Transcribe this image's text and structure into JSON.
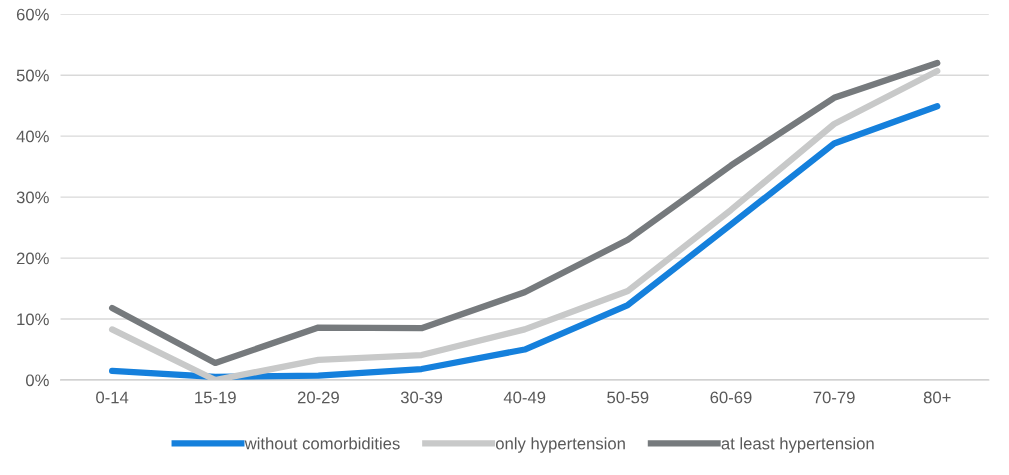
{
  "chart_data": {
    "type": "line",
    "categories": [
      "0-14",
      "15-19",
      "20-29",
      "30-39",
      "40-49",
      "50-59",
      "60-69",
      "70-79",
      "80+"
    ],
    "series": [
      {
        "name": "without comorbidities",
        "color": "#1580dc",
        "values": [
          1.5,
          0.5,
          0.7,
          1.8,
          5.0,
          12.3,
          25.5,
          38.8,
          44.9
        ]
      },
      {
        "name": "only hypertension",
        "color": "#c8c9c9",
        "values": [
          8.3,
          0.0,
          3.3,
          4.1,
          8.3,
          14.6,
          27.9,
          42.0,
          50.7
        ]
      },
      {
        "name": "at least hypertension",
        "color": "#767a7d",
        "values": [
          11.8,
          2.8,
          8.6,
          8.5,
          14.4,
          23.0,
          35.2,
          46.3,
          52.0
        ]
      }
    ],
    "ylim": [
      0,
      60
    ],
    "yticks": [
      {
        "value": 0,
        "label": "0%"
      },
      {
        "value": 10,
        "label": "10%"
      },
      {
        "value": 20,
        "label": "20%"
      },
      {
        "value": 30,
        "label": "30%"
      },
      {
        "value": 40,
        "label": "40%"
      },
      {
        "value": 50,
        "label": "50%"
      },
      {
        "value": 60,
        "label": "60%"
      }
    ],
    "grid": "y",
    "legend": "bottom",
    "marker": "none",
    "line_style": "solid"
  }
}
